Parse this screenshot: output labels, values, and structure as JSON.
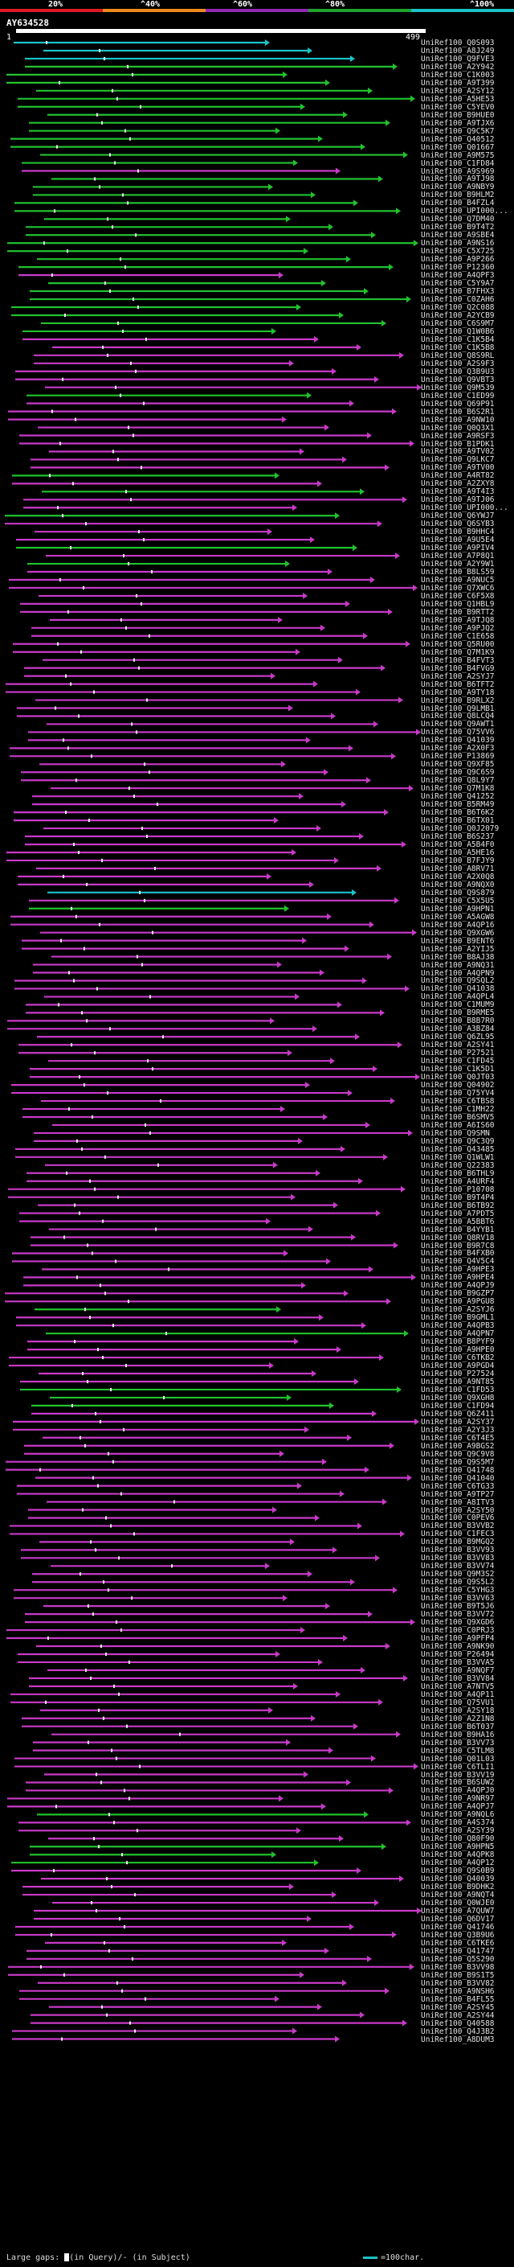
{
  "legend": {
    "labels": [
      "20%",
      "^40%",
      "^60%",
      "^80%",
      "^100%"
    ],
    "colors": [
      "#e01a22",
      "#ee8a1b",
      "#8e2bb2",
      "#21a32e",
      "#19c3c8"
    ]
  },
  "query": {
    "id": "AY634528",
    "start": "1",
    "end": "499"
  },
  "footer": {
    "gaps_text": "Large gaps: ",
    "in_query": "(in Query)/",
    "in_subject": "- (in Subject)",
    "scale": "=100char."
  },
  "hits": [
    {
      "name": "UniRef100_Q0S093",
      "color": "cyan"
    },
    {
      "name": "UniRef100_A8J249",
      "color": "cyan"
    },
    {
      "name": "UniRef100_Q9FVE3",
      "color": "cyan"
    },
    {
      "name": "UniRef100_A2Y942",
      "color": "green"
    },
    {
      "name": "UniRef100_C1K003",
      "color": "green"
    },
    {
      "name": "UniRef100_A9T399",
      "color": "green"
    },
    {
      "name": "UniRef100_A2SY12",
      "color": "green"
    },
    {
      "name": "UniRef100_A5HE53",
      "color": "green"
    },
    {
      "name": "UniRef100_C5YEV0",
      "color": "green"
    },
    {
      "name": "UniRef100_B9HUE0",
      "color": "green"
    },
    {
      "name": "UniRef100_A9TJX6",
      "color": "green"
    },
    {
      "name": "UniRef100_Q9C5K7",
      "color": "green"
    },
    {
      "name": "UniRef100_Q40512",
      "color": "green"
    },
    {
      "name": "UniRef100_Q01667",
      "color": "green"
    },
    {
      "name": "UniRef100_A9M575",
      "color": "green"
    },
    {
      "name": "UniRef100_C1FD84",
      "color": "green"
    },
    {
      "name": "UniRef100_A9S969",
      "color": "magenta"
    },
    {
      "name": "UniRef100_A9TJ98",
      "color": "green"
    },
    {
      "name": "UniRef100_A9NBY9",
      "color": "green"
    },
    {
      "name": "UniRef100_B9HLM2",
      "color": "green"
    },
    {
      "name": "UniRef100_B4FZL4",
      "color": "green"
    },
    {
      "name": "UniRef100_UPI000...",
      "color": "green"
    },
    {
      "name": "UniRef100_Q7DM40",
      "color": "green"
    },
    {
      "name": "UniRef100_B9T4T2",
      "color": "green"
    },
    {
      "name": "UniRef100_A9SBE4",
      "color": "green"
    },
    {
      "name": "UniRef100_A9NS16",
      "color": "green"
    },
    {
      "name": "UniRef100_C5X725",
      "color": "green"
    },
    {
      "name": "UniRef100_A9P266",
      "color": "green"
    },
    {
      "name": "UniRef100_P12360",
      "color": "green"
    },
    {
      "name": "UniRef100_A4QPF3",
      "color": "magenta"
    },
    {
      "name": "UniRef100_C5Y9A7",
      "color": "green"
    },
    {
      "name": "UniRef100_B7FHX3",
      "color": "green"
    },
    {
      "name": "UniRef100_C0ZAH6",
      "color": "green"
    },
    {
      "name": "UniRef100_Q2C088",
      "color": "green"
    },
    {
      "name": "UniRef100_A2YCB9",
      "color": "green"
    },
    {
      "name": "UniRef100_C6S9M7",
      "color": "green"
    },
    {
      "name": "UniRef100_Q1W0B6",
      "color": "green"
    },
    {
      "name": "UniRef100_C1K5B4",
      "color": "magenta"
    },
    {
      "name": "UniRef100_C1K5B8",
      "color": "magenta"
    },
    {
      "name": "UniRef100_Q8S9RL",
      "color": "magenta"
    },
    {
      "name": "UniRef100_A2S9F3",
      "color": "magenta"
    },
    {
      "name": "UniRef100_Q3B9U3",
      "color": "magenta"
    },
    {
      "name": "UniRef100_Q9VBT3",
      "color": "magenta"
    },
    {
      "name": "UniRef100_Q9M539",
      "color": "magenta"
    },
    {
      "name": "UniRef100_C1ED99",
      "color": "green"
    },
    {
      "name": "UniRef100_Q69P91",
      "color": "magenta"
    },
    {
      "name": "UniRef100_B6S2R1",
      "color": "magenta"
    },
    {
      "name": "UniRef100_A9NW10",
      "color": "magenta"
    },
    {
      "name": "UniRef100_Q0Q3X1",
      "color": "magenta"
    },
    {
      "name": "UniRef100_A9RSF3",
      "color": "magenta"
    },
    {
      "name": "UniRef100_B1PDK1",
      "color": "magenta"
    },
    {
      "name": "UniRef100_A9TV02",
      "color": "magenta"
    },
    {
      "name": "UniRef100_Q9LKC7",
      "color": "magenta"
    },
    {
      "name": "UniRef100_A9TV00",
      "color": "magenta"
    },
    {
      "name": "UniRef100_A4RT82",
      "color": "green"
    },
    {
      "name": "UniRef100_A2ZXY8",
      "color": "magenta"
    },
    {
      "name": "UniRef100_A9T4I3",
      "color": "green"
    },
    {
      "name": "UniRef100_A9TJ06",
      "color": "magenta"
    },
    {
      "name": "UniRef100_UPI000...",
      "color": "magenta"
    },
    {
      "name": "UniRef100_Q6YWJ7",
      "color": "green"
    },
    {
      "name": "UniRef100_Q6SYB3",
      "color": "magenta"
    },
    {
      "name": "UniRef100_B9HHC4",
      "color": "magenta"
    },
    {
      "name": "UniRef100_A9U5E4",
      "color": "magenta"
    },
    {
      "name": "UniRef100_A9PIV4",
      "color": "green"
    },
    {
      "name": "UniRef100_A7P8Q1",
      "color": "magenta"
    },
    {
      "name": "UniRef100_A2Y9W1",
      "color": "green"
    },
    {
      "name": "UniRef100_B8LS59",
      "color": "magenta"
    },
    {
      "name": "UniRef100_A9NUC5",
      "color": "magenta"
    },
    {
      "name": "UniRef100_Q7XWC6",
      "color": "magenta"
    },
    {
      "name": "UniRef100_C6F5X8",
      "color": "magenta"
    },
    {
      "name": "UniRef100_Q1HBL9",
      "color": "magenta"
    },
    {
      "name": "UniRef100_B9RTT2",
      "color": "magenta"
    },
    {
      "name": "UniRef100_A9TJQ8",
      "color": "magenta"
    },
    {
      "name": "UniRef100_A9PJQ2",
      "color": "magenta"
    },
    {
      "name": "UniRef100_C1E658",
      "color": "magenta"
    },
    {
      "name": "UniRef100_Q5RU00",
      "color": "magenta"
    },
    {
      "name": "UniRef100_Q7M1K9",
      "color": "magenta"
    },
    {
      "name": "UniRef100_B4FVT3",
      "color": "magenta"
    },
    {
      "name": "UniRef100_B4FVG9",
      "color": "magenta"
    },
    {
      "name": "UniRef100_A2SYJ7",
      "color": "magenta"
    },
    {
      "name": "UniRef100_B6TFT2",
      "color": "magenta"
    },
    {
      "name": "UniRef100_A9TY18",
      "color": "magenta"
    },
    {
      "name": "UniRef100_B9RLX2",
      "color": "magenta"
    },
    {
      "name": "UniRef100_Q9LMB1",
      "color": "magenta"
    },
    {
      "name": "UniRef100_Q8LCQ4",
      "color": "magenta"
    },
    {
      "name": "UniRef100_Q9AWT1",
      "color": "magenta"
    },
    {
      "name": "UniRef100_Q75VV6",
      "color": "magenta"
    },
    {
      "name": "UniRef100_Q41039",
      "color": "magenta"
    },
    {
      "name": "UniRef100_A2X0F3",
      "color": "magenta"
    },
    {
      "name": "UniRef100_P13869",
      "color": "magenta"
    },
    {
      "name": "UniRef100_Q9XF85",
      "color": "magenta"
    },
    {
      "name": "UniRef100_Q9C6S9",
      "color": "magenta"
    },
    {
      "name": "UniRef100_Q8L9Y7",
      "color": "magenta"
    },
    {
      "name": "UniRef100_Q7M1K8",
      "color": "magenta"
    },
    {
      "name": "UniRef100_Q41252",
      "color": "magenta"
    },
    {
      "name": "UniRef100_B5RM49",
      "color": "magenta"
    },
    {
      "name": "UniRef100_B6T6K2",
      "color": "magenta"
    },
    {
      "name": "UniRef100_B6TX01",
      "color": "magenta"
    },
    {
      "name": "UniRef100_Q0J2079",
      "color": "magenta"
    },
    {
      "name": "UniRef100_B6S237",
      "color": "magenta"
    },
    {
      "name": "UniRef100_A5B4F0",
      "color": "magenta"
    },
    {
      "name": "UniRef100_A5HE16",
      "color": "magenta"
    },
    {
      "name": "UniRef100_B7FJY9",
      "color": "magenta"
    },
    {
      "name": "UniRef100_A8RV71",
      "color": "magenta"
    },
    {
      "name": "UniRef100_A2X0Q8",
      "color": "magenta"
    },
    {
      "name": "UniRef100_A9NQX0",
      "color": "magenta"
    },
    {
      "name": "UniRef100_Q9S879",
      "color": "cyan"
    },
    {
      "name": "UniRef100_C5X5U5",
      "color": "magenta"
    },
    {
      "name": "UniRef100_A9HPN1",
      "color": "green"
    },
    {
      "name": "UniRef100_A5AGW8",
      "color": "magenta"
    },
    {
      "name": "UniRef100_A4QP16",
      "color": "magenta"
    },
    {
      "name": "UniRef100_Q9XGW6",
      "color": "magenta"
    },
    {
      "name": "UniRef100_B9ENT6",
      "color": "magenta"
    },
    {
      "name": "UniRef100_A2YIJ5",
      "color": "magenta"
    },
    {
      "name": "UniRef100_B8AJ38",
      "color": "magenta"
    },
    {
      "name": "UniRef100_A9NQ31",
      "color": "magenta"
    },
    {
      "name": "UniRef100_A4QPN9",
      "color": "magenta"
    },
    {
      "name": "UniRef100_Q9SQL2",
      "color": "magenta"
    },
    {
      "name": "UniRef100_Q41038",
      "color": "magenta"
    },
    {
      "name": "UniRef100_A4QPL4",
      "color": "magenta"
    },
    {
      "name": "UniRef100_C1MUM9",
      "color": "magenta"
    },
    {
      "name": "UniRef100_B9RME5",
      "color": "magenta"
    },
    {
      "name": "UniRef100_B8B7R0",
      "color": "magenta"
    },
    {
      "name": "UniRef100_A3BZ84",
      "color": "magenta"
    },
    {
      "name": "UniRef100_Q6ZL95",
      "color": "magenta"
    },
    {
      "name": "UniRef100_A2SY41",
      "color": "magenta"
    },
    {
      "name": "UniRef100_P27521",
      "color": "magenta"
    },
    {
      "name": "UniRef100_C1FD45",
      "color": "magenta"
    },
    {
      "name": "UniRef100_C1K5D1",
      "color": "magenta"
    },
    {
      "name": "UniRef100_Q0JT03",
      "color": "magenta"
    },
    {
      "name": "UniRef100_Q04902",
      "color": "magenta"
    },
    {
      "name": "UniRef100_Q75YV4",
      "color": "magenta"
    },
    {
      "name": "UniRef100_C6TBS8",
      "color": "magenta"
    },
    {
      "name": "UniRef100_C1MH22",
      "color": "magenta"
    },
    {
      "name": "UniRef100_B6SMV5",
      "color": "magenta"
    },
    {
      "name": "UniRef100_A6IS60",
      "color": "magenta"
    },
    {
      "name": "UniRef100_Q9SMN",
      "color": "magenta"
    },
    {
      "name": "UniRef100_Q9C3Q9",
      "color": "magenta"
    },
    {
      "name": "UniRef100_Q43485",
      "color": "magenta"
    },
    {
      "name": "UniRef100_Q1WLW1",
      "color": "magenta"
    },
    {
      "name": "UniRef100_Q22383",
      "color": "magenta"
    },
    {
      "name": "UniRef100_B6THL9",
      "color": "magenta"
    },
    {
      "name": "UniRef100_A4URF4",
      "color": "magenta"
    },
    {
      "name": "UniRef100_P10708",
      "color": "magenta"
    },
    {
      "name": "UniRef100_B9T4P4",
      "color": "magenta"
    },
    {
      "name": "UniRef100_B6TB92",
      "color": "magenta"
    },
    {
      "name": "UniRef100_A7PDT5",
      "color": "magenta"
    },
    {
      "name": "UniRef100_A5BBT6",
      "color": "magenta"
    },
    {
      "name": "UniRef100_B4YYB1",
      "color": "magenta"
    },
    {
      "name": "UniRef100_Q8RV18",
      "color": "magenta"
    },
    {
      "name": "UniRef100_B9R7C8",
      "color": "magenta"
    },
    {
      "name": "UniRef100_B4FXB0",
      "color": "magenta"
    },
    {
      "name": "UniRef100_Q4V5C4",
      "color": "magenta"
    },
    {
      "name": "UniRef100_A9HPE3",
      "color": "magenta"
    },
    {
      "name": "UniRef100_A9HPE4",
      "color": "magenta"
    },
    {
      "name": "UniRef100_A4QPJ9",
      "color": "magenta"
    },
    {
      "name": "UniRef100_B9GZP7",
      "color": "magenta"
    },
    {
      "name": "UniRef100_A9PGU8",
      "color": "magenta"
    },
    {
      "name": "UniRef100_A2SYJ6",
      "color": "green"
    },
    {
      "name": "UniRef100_B9GML1",
      "color": "magenta"
    },
    {
      "name": "UniRef100_A4QPB3",
      "color": "magenta"
    },
    {
      "name": "UniRef100_A4QPN7",
      "color": "green"
    },
    {
      "name": "UniRef100_B8PYF9",
      "color": "magenta"
    },
    {
      "name": "UniRef100_A9HPE0",
      "color": "magenta"
    },
    {
      "name": "UniRef100_C6TKB2",
      "color": "magenta"
    },
    {
      "name": "UniRef100_A9PGD4",
      "color": "magenta"
    },
    {
      "name": "UniRef100_P27524",
      "color": "magenta"
    },
    {
      "name": "UniRef100_A9NT85",
      "color": "magenta"
    },
    {
      "name": "UniRef100_C1FD53",
      "color": "green"
    },
    {
      "name": "UniRef100_Q9XGH8",
      "color": "green"
    },
    {
      "name": "UniRef100_C1FD94",
      "color": "green"
    },
    {
      "name": "UniRef100_Q6Z411",
      "color": "magenta"
    },
    {
      "name": "UniRef100_A2SY37",
      "color": "magenta"
    },
    {
      "name": "UniRef100_A2Y3J3",
      "color": "magenta"
    },
    {
      "name": "UniRef100_C6T4E5",
      "color": "magenta"
    },
    {
      "name": "UniRef100_A9BGS2",
      "color": "magenta"
    },
    {
      "name": "UniRef100_Q9C9V8",
      "color": "magenta"
    },
    {
      "name": "UniRef100_Q9S5M7",
      "color": "magenta"
    },
    {
      "name": "UniRef100_Q41748",
      "color": "magenta"
    },
    {
      "name": "UniRef100_Q41040",
      "color": "magenta"
    },
    {
      "name": "UniRef100_C6TG33",
      "color": "magenta"
    },
    {
      "name": "UniRef100_A9TP27",
      "color": "magenta"
    },
    {
      "name": "UniRef100_A8ITV3",
      "color": "magenta"
    },
    {
      "name": "UniRef100_A2SY50",
      "color": "magenta"
    },
    {
      "name": "UniRef100_C0PEV6",
      "color": "magenta"
    },
    {
      "name": "UniRef100_B3VVB2",
      "color": "magenta"
    },
    {
      "name": "UniRef100_C1FEC3",
      "color": "magenta"
    },
    {
      "name": "UniRef100_B9MGQ2",
      "color": "magenta"
    },
    {
      "name": "UniRef100_B3VV93",
      "color": "magenta"
    },
    {
      "name": "UniRef100_B3VV83",
      "color": "magenta"
    },
    {
      "name": "UniRef100_B3VV74",
      "color": "magenta"
    },
    {
      "name": "UniRef100_Q9M3S2",
      "color": "magenta"
    },
    {
      "name": "UniRef100_Q9S5L2",
      "color": "magenta"
    },
    {
      "name": "UniRef100_C5YHG3",
      "color": "magenta"
    },
    {
      "name": "UniRef100_B3VV63",
      "color": "magenta"
    },
    {
      "name": "UniRef100_B9T5J6",
      "color": "magenta"
    },
    {
      "name": "UniRef100_B3VV72",
      "color": "magenta"
    },
    {
      "name": "UniRef100_Q9XGD6",
      "color": "magenta"
    },
    {
      "name": "UniRef100_C0PRJ3",
      "color": "magenta"
    },
    {
      "name": "UniRef100_A9PFP4",
      "color": "magenta"
    },
    {
      "name": "UniRef100_A9NK90",
      "color": "magenta"
    },
    {
      "name": "UniRef100_P26494",
      "color": "magenta"
    },
    {
      "name": "UniRef100_B3VVA5",
      "color": "magenta"
    },
    {
      "name": "UniRef100_A9NQF7",
      "color": "magenta"
    },
    {
      "name": "UniRef100_B3VV84",
      "color": "magenta"
    },
    {
      "name": "UniRef100_A7NTV5",
      "color": "magenta"
    },
    {
      "name": "UniRef100_A4QP11",
      "color": "magenta"
    },
    {
      "name": "UniRef100_Q75VU1",
      "color": "magenta"
    },
    {
      "name": "UniRef100_A2SY18",
      "color": "magenta"
    },
    {
      "name": "UniRef100_A2Z1N8",
      "color": "magenta"
    },
    {
      "name": "UniRef100_B6T037",
      "color": "magenta"
    },
    {
      "name": "UniRef100_B9HA16",
      "color": "magenta"
    },
    {
      "name": "UniRef100_B3VV73",
      "color": "magenta"
    },
    {
      "name": "UniRef100_C5TLM8",
      "color": "magenta"
    },
    {
      "name": "UniRef100_Q01L03",
      "color": "magenta"
    },
    {
      "name": "UniRef100_C6TLI1",
      "color": "magenta"
    },
    {
      "name": "UniRef100_B3VV19",
      "color": "magenta"
    },
    {
      "name": "UniRef100_B6SUW2",
      "color": "magenta"
    },
    {
      "name": "UniRef100_A4QPJ0",
      "color": "magenta"
    },
    {
      "name": "UniRef100_A9NR97",
      "color": "magenta"
    },
    {
      "name": "UniRef100_A4QPJ7",
      "color": "magenta"
    },
    {
      "name": "UniRef100_A9NQL6",
      "color": "green"
    },
    {
      "name": "UniRef100_A4S374",
      "color": "magenta"
    },
    {
      "name": "UniRef100_A2SY39",
      "color": "magenta"
    },
    {
      "name": "UniRef100_Q80F90",
      "color": "magenta"
    },
    {
      "name": "UniRef100_A9HPN5",
      "color": "green"
    },
    {
      "name": "UniRef100_A4QPK8",
      "color": "green"
    },
    {
      "name": "UniRef100_A4QP12",
      "color": "green"
    },
    {
      "name": "UniRef100_Q9S0B9",
      "color": "magenta"
    },
    {
      "name": "UniRef100_Q40039",
      "color": "magenta"
    },
    {
      "name": "UniRef100_B9DHK2",
      "color": "magenta"
    },
    {
      "name": "UniRef100_A9NQT4",
      "color": "magenta"
    },
    {
      "name": "UniRef100_Q0WJE0",
      "color": "magenta"
    },
    {
      "name": "UniRef100_A7QUW7",
      "color": "magenta"
    },
    {
      "name": "UniRef100_Q6DV17",
      "color": "magenta"
    },
    {
      "name": "UniRef100_Q41746",
      "color": "magenta"
    },
    {
      "name": "UniRef100_Q3B9U6",
      "color": "magenta"
    },
    {
      "name": "UniRef100_C6TKE6",
      "color": "magenta"
    },
    {
      "name": "UniRef100_Q41747",
      "color": "magenta"
    },
    {
      "name": "UniRef100_Q5S290",
      "color": "magenta"
    },
    {
      "name": "UniRef100_B3VV98",
      "color": "magenta"
    },
    {
      "name": "UniRef100_B9S1T5",
      "color": "magenta"
    },
    {
      "name": "UniRef100_B3VV82",
      "color": "magenta"
    },
    {
      "name": "UniRef100_A9NSH6",
      "color": "magenta"
    },
    {
      "name": "UniRef100_B4FL55",
      "color": "magenta"
    },
    {
      "name": "UniRef100_A2SY45",
      "color": "magenta"
    },
    {
      "name": "UniRef100_A2SY44",
      "color": "magenta"
    },
    {
      "name": "UniRef100_Q40588",
      "color": "magenta"
    },
    {
      "name": "UniRef100_Q4J3B2",
      "color": "magenta"
    },
    {
      "name": "UniRef100_A8DUM3",
      "color": "magenta"
    }
  ]
}
